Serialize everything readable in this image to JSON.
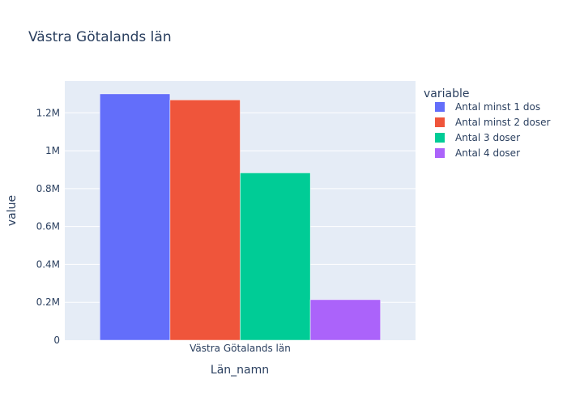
{
  "chart_data": {
    "type": "bar",
    "title": "Västra Götalands län",
    "xlabel": "Län_namn",
    "ylabel": "value",
    "categories": [
      "Västra Götalands län"
    ],
    "ylim": [
      0,
      1368000
    ],
    "yticks": [
      {
        "value": 0,
        "label": "0"
      },
      {
        "value": 200000,
        "label": "0.2M"
      },
      {
        "value": 400000,
        "label": "0.4M"
      },
      {
        "value": 600000,
        "label": "0.6M"
      },
      {
        "value": 800000,
        "label": "0.8M"
      },
      {
        "value": 1000000,
        "label": "1M"
      },
      {
        "value": 1200000,
        "label": "1.2M"
      }
    ],
    "grid": true,
    "legend": {
      "title": "variable",
      "placement": "right"
    },
    "series": [
      {
        "name": "Antal minst 1 dos",
        "values": [
          1300000
        ],
        "color": "#636efa"
      },
      {
        "name": "Antal minst 2 doser",
        "values": [
          1268000
        ],
        "color": "#ef553b"
      },
      {
        "name": "Antal 3 doser",
        "values": [
          883000
        ],
        "color": "#00cc96"
      },
      {
        "name": "Antal 4 doser",
        "values": [
          214000
        ],
        "color": "#ab63fa"
      }
    ]
  }
}
